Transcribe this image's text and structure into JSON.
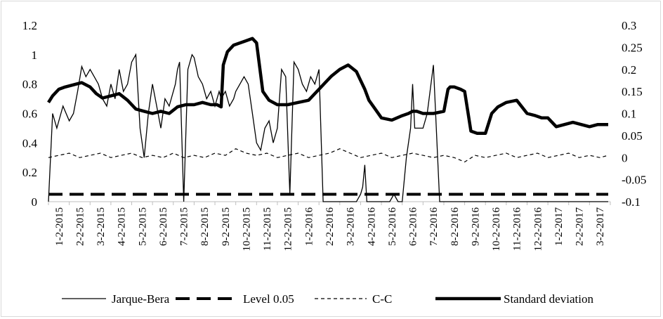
{
  "chart_data": {
    "type": "line",
    "left_axis": {
      "ylim": [
        0,
        1.2
      ],
      "ticks": [
        "0",
        "0.2",
        "0.4",
        "0.6",
        "0.8",
        "1",
        "1.2"
      ]
    },
    "right_axis": {
      "ylim": [
        -0.1,
        0.3
      ],
      "ticks": [
        "-0.1",
        "-0.05",
        "0",
        "0.05",
        "0.1",
        "0.15",
        "0.2",
        "0.25",
        "0.3"
      ]
    },
    "x_tick_labels": [
      "1-2-2015",
      "2-2-2015",
      "3-2-2015",
      "4-2-2015",
      "5-2-2015",
      "6-2-2015",
      "7-2-2015",
      "8-2-2015",
      "9-2-2015",
      "10-2-2015",
      "11-2-2015",
      "12-2-2015",
      "1-2-2016",
      "2-2-2016",
      "3-2-2016",
      "4-2-2016",
      "5-2-2016",
      "6-2-2016",
      "7-2-2016",
      "8-2-2016",
      "9-2-2016",
      "10-2-2016",
      "11-2-2016",
      "12-2-2016",
      "1-2-2017",
      "2-2-2017",
      "3-2-2017"
    ],
    "legend_position": "bottom",
    "grid": false,
    "series": [
      {
        "name": "Jarque-Bera",
        "axis": "left",
        "style": "thin-solid",
        "x": [
          0,
          0.2,
          0.4,
          0.7,
          1,
          1.2,
          1.4,
          1.6,
          1.8,
          2,
          2.2,
          2.4,
          2.6,
          2.8,
          3,
          3.2,
          3.4,
          3.6,
          3.8,
          4,
          4.2,
          4.4,
          4.6,
          4.8,
          5,
          5.2,
          5.4,
          5.6,
          5.8,
          6,
          6.1,
          6.2,
          6.3,
          6.5,
          6.7,
          6.9,
          7,
          7.2,
          7.4,
          7.6,
          7.8,
          8,
          8.1,
          8.2,
          8.3,
          8.5,
          8.7,
          8.9,
          9,
          9.2,
          9.4,
          9.6,
          9.8,
          10,
          10.2,
          10.4,
          10.6,
          10.8,
          11,
          11.2,
          11.4,
          11.6,
          11.8,
          12,
          12.2,
          12.4,
          12.6,
          12.8,
          13,
          13.2,
          13.4,
          13.6,
          13.8,
          14,
          14.2,
          14.4,
          14.6,
          14.8,
          15,
          15.1,
          15.2,
          15.3,
          15.5,
          15.7,
          15.9,
          16,
          16.2,
          16.4,
          16.6,
          16.8,
          17,
          17.2,
          17.4,
          17.5,
          17.6,
          18,
          18.2,
          18.5,
          18.8,
          19,
          19.2,
          19.3,
          19.5,
          19.8,
          20,
          20.2,
          20.5,
          20.8,
          21,
          21.2,
          21.4,
          21.6,
          21.8,
          22,
          22.2,
          22.4,
          22.5,
          22.6,
          23,
          23.5,
          24,
          24.2,
          24.5,
          24.8,
          25,
          25.2,
          25.4,
          25.6,
          25.8,
          26,
          26.2,
          26.4,
          26.6,
          26.8,
          26.9
        ],
        "y": [
          0,
          0.6,
          0.5,
          0.65,
          0.55,
          0.6,
          0.75,
          0.92,
          0.85,
          0.9,
          0.85,
          0.8,
          0.7,
          0.65,
          0.8,
          0.7,
          0.9,
          0.75,
          0.8,
          0.95,
          1.0,
          0.5,
          0.3,
          0.6,
          0.8,
          0.65,
          0.5,
          0.7,
          0.65,
          0.75,
          0.8,
          0.9,
          0.95,
          0.0,
          0.9,
          1.0,
          0.98,
          0.85,
          0.8,
          0.7,
          0.75,
          0.65,
          0.7,
          0.75,
          0.7,
          0.75,
          0.65,
          0.7,
          0.75,
          0.8,
          0.85,
          0.8,
          0.6,
          0.4,
          0.35,
          0.5,
          0.55,
          0.4,
          0.5,
          0.9,
          0.85,
          0.05,
          0.95,
          0.9,
          0.8,
          0.75,
          0.85,
          0.8,
          0.9,
          0.0,
          0.0,
          0.0,
          0.0,
          0.0,
          0.0,
          0.0,
          0.0,
          0.0,
          0.05,
          0.1,
          0.25,
          0.0,
          0.0,
          0.0,
          0.0,
          0.0,
          0.0,
          0.0,
          0.05,
          0.0,
          0.0,
          0.3,
          0.5,
          0.8,
          0.5,
          0.5,
          0.6,
          0.93,
          0.0,
          0.0,
          0.0,
          0.0,
          0.0,
          0.0,
          0.0,
          0.0,
          0.0,
          0.0,
          0.0,
          0.0,
          0.0,
          0.0,
          0.0,
          0.0,
          0.0,
          0.0,
          0.0,
          0.0,
          0.0,
          0.0,
          0.0,
          0.0,
          0.0,
          0.0,
          0.0,
          0.0,
          0.0,
          0.0,
          0.0,
          0.0,
          0.0,
          0.0,
          0.0,
          0.0,
          0.0
        ]
      },
      {
        "name": "Level 0.05",
        "axis": "left",
        "style": "thick-dashed",
        "x": [
          0,
          26.9
        ],
        "y": [
          0.05,
          0.05
        ]
      },
      {
        "name": "C-C",
        "axis": "right",
        "style": "thin-dashed",
        "x": [
          0,
          0.5,
          1,
          1.5,
          2,
          2.5,
          3,
          3.5,
          4,
          4.5,
          5,
          5.5,
          6,
          6.5,
          7,
          7.5,
          8,
          8.5,
          9,
          9.5,
          10,
          10.5,
          11,
          11.5,
          12,
          12.5,
          13,
          13.5,
          14,
          14.5,
          15,
          15.5,
          16,
          16.5,
          17,
          17.5,
          18,
          18.5,
          19,
          19.5,
          20,
          20.5,
          21,
          21.5,
          22,
          22.5,
          23,
          23.5,
          24,
          24.5,
          25,
          25.5,
          26,
          26.5,
          26.9
        ],
        "y": [
          0,
          0.005,
          0.01,
          0,
          0.005,
          0.01,
          0,
          0.005,
          0.01,
          0,
          0.005,
          0,
          0.01,
          0,
          0.005,
          0,
          0.01,
          0.005,
          0.02,
          0.01,
          0.005,
          0.01,
          0,
          0.005,
          0.01,
          0,
          0.005,
          0.01,
          0.02,
          0.01,
          0,
          0.005,
          0.01,
          0,
          0.005,
          0.01,
          0.005,
          0,
          0.005,
          0,
          -0.01,
          0.005,
          0,
          0.005,
          0.01,
          0,
          0.005,
          0.01,
          0,
          0.005,
          0.01,
          0,
          0.005,
          0,
          0.005
        ]
      },
      {
        "name": "Standard deviation",
        "axis": "right",
        "style": "thick-solid",
        "x": [
          0,
          0.2,
          0.5,
          0.8,
          1.2,
          1.6,
          2,
          2.3,
          2.6,
          3,
          3.4,
          3.8,
          4.2,
          4.6,
          5,
          5.4,
          5.8,
          6.2,
          6.6,
          7,
          7.4,
          7.8,
          8.1,
          8.3,
          8.4,
          8.6,
          8.9,
          9.2,
          9.5,
          9.8,
          10,
          10.3,
          10.6,
          11,
          11.5,
          12,
          12.5,
          13,
          13.3,
          13.6,
          14,
          14.4,
          14.8,
          15,
          15.2,
          15.4,
          15.7,
          16,
          16.5,
          17,
          17.3,
          17.5,
          17.7,
          18,
          18.5,
          19,
          19.2,
          19.3,
          19.5,
          19.8,
          20,
          20.3,
          20.6,
          21,
          21.3,
          21.6,
          22,
          22.5,
          23,
          23.4,
          23.7,
          24,
          24.4,
          24.8,
          25.2,
          25.6,
          26,
          26.4,
          26.8,
          26.9
        ],
        "y": [
          0.125,
          0.14,
          0.155,
          0.16,
          0.165,
          0.17,
          0.16,
          0.145,
          0.135,
          0.14,
          0.145,
          0.13,
          0.11,
          0.105,
          0.1,
          0.105,
          0.1,
          0.115,
          0.12,
          0.12,
          0.125,
          0.12,
          0.12,
          0.115,
          0.21,
          0.24,
          0.255,
          0.26,
          0.265,
          0.27,
          0.26,
          0.15,
          0.13,
          0.12,
          0.12,
          0.125,
          0.13,
          0.155,
          0.17,
          0.185,
          0.2,
          0.21,
          0.195,
          0.175,
          0.155,
          0.13,
          0.11,
          0.09,
          0.085,
          0.095,
          0.1,
          0.105,
          0.105,
          0.1,
          0.1,
          0.105,
          0.155,
          0.16,
          0.16,
          0.155,
          0.15,
          0.06,
          0.055,
          0.055,
          0.1,
          0.115,
          0.125,
          0.13,
          0.1,
          0.095,
          0.09,
          0.09,
          0.07,
          0.075,
          0.08,
          0.075,
          0.07,
          0.075,
          0.075,
          0.075
        ]
      }
    ]
  }
}
